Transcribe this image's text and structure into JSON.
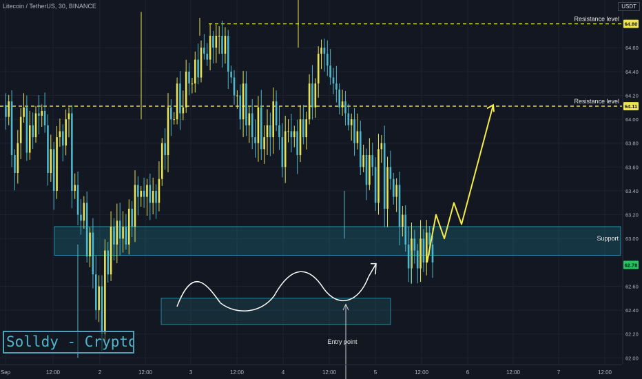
{
  "header": {
    "symbol_line": "Litecoin / TetherUS, 30, BINANCE",
    "currency": "USDT"
  },
  "watermark": "Solldy - Crypto for U",
  "colors": {
    "background": "#131722",
    "up_candle": "#e8e354",
    "down_candle": "#4fb7cc",
    "level_line": "#f0e64a",
    "zone_fill": "rgba(38,166,184,0.22)",
    "zone_border": "#26a6b8",
    "projection": "#f5ec4a",
    "annotation": "#ffffff",
    "last_price_tag": "#22c55e"
  },
  "chart_data": {
    "type": "candlestick",
    "interval": "30",
    "exchange": "BINANCE",
    "ylim": [
      61.95,
      65.0
    ],
    "y_ticks": [
      62.0,
      62.2,
      62.4,
      62.6,
      63.0,
      63.2,
      63.4,
      63.6,
      63.8,
      64.0,
      64.2,
      64.4,
      64.6
    ],
    "x_ticks": [
      "Sep",
      "12:00",
      "2",
      "12:00",
      "3",
      "12:00",
      "4",
      "12:00",
      "5",
      "12:00",
      "6",
      "12:00",
      "7",
      "12:00"
    ],
    "price_tags": [
      {
        "label": "64.80",
        "value": 64.8,
        "kind": "resistance"
      },
      {
        "label": "64.11",
        "value": 64.11,
        "kind": "resistance"
      },
      {
        "label": "62.78",
        "value": 62.78,
        "kind": "last"
      }
    ],
    "resistance_levels": [
      64.8,
      64.11
    ],
    "support_zone": [
      62.86,
      63.1
    ],
    "annotations": {
      "resistance_label": "Resistance level",
      "support_label": "Support",
      "entry_label": "Entry point"
    },
    "price_path": [
      64.12,
      64.02,
      64.15,
      63.7,
      63.55,
      63.8,
      64.02,
      64.1,
      63.72,
      63.95,
      63.85,
      64.05,
      64.03,
      64.07,
      63.95,
      63.55,
      63.75,
      63.4,
      63.85,
      63.9,
      63.78,
      64.0,
      64.05,
      63.4,
      63.45,
      63.2,
      63.15,
      63.3,
      62.85,
      63.05,
      62.7,
      62.4,
      62.6,
      62.2,
      62.9,
      62.7,
      63.1,
      62.95,
      63.15,
      63.0,
      63.1,
      62.95,
      63.25,
      63.1,
      63.45,
      63.35,
      63.4,
      63.35,
      63.45,
      63.3,
      63.4,
      63.3,
      63.5,
      63.8,
      63.7,
      64.1,
      64.0,
      64.0,
      64.3,
      64.05,
      64.1,
      64.4,
      64.3,
      64.3,
      64.5,
      64.35,
      64.6,
      64.55,
      64.5,
      64.7,
      64.6,
      64.7,
      64.7,
      64.55,
      64.7,
      64.4,
      64.35,
      64.2,
      64.2,
      64.0,
      64.3,
      63.95,
      64.05,
      63.85,
      63.8,
      64.1,
      63.75,
      63.85,
      63.95,
      63.85,
      64.15,
      63.95,
      63.85,
      63.6,
      63.9,
      63.9,
      63.85,
      63.9,
      63.7,
      64.0,
      63.85,
      64.0,
      64.3,
      64.1,
      64.3,
      64.55,
      64.6,
      64.55,
      64.45,
      64.35,
      64.3,
      64.25,
      64.1,
      64.15,
      64.05,
      63.95,
      64.0,
      63.8,
      63.9,
      63.6,
      63.7,
      63.45,
      63.7,
      63.6,
      63.3,
      63.75,
      63.8,
      63.25,
      63.6,
      63.5,
      63.35,
      63.45,
      63.1,
      63.2,
      62.95,
      62.75,
      63.0,
      62.9,
      62.75,
      63.0,
      62.8,
      63.05,
      62.95,
      62.8
    ]
  }
}
